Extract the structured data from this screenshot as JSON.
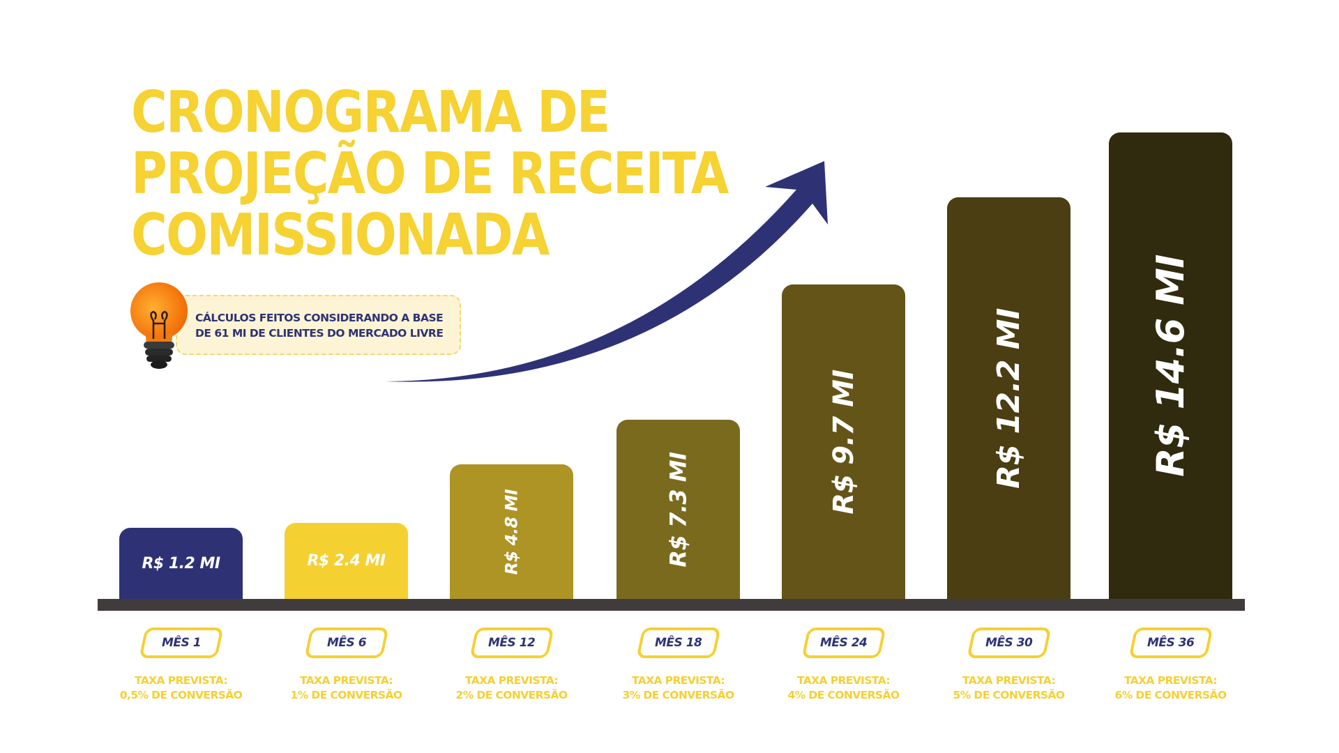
{
  "title": {
    "lines": [
      "CRONOGRAMA DE",
      "PROJEÇÃO DE RECEITA",
      "COMISSIONADA"
    ]
  },
  "note": {
    "icon": "lightbulb-icon",
    "lines": [
      "CÁLCULOS  FEITOS CONSIDERANDO A BASE",
      "DE 61 MI DE CLIENTES DO MERCADO LIVRE"
    ]
  },
  "colors": {
    "title": "#f6d232",
    "navy": "#2e3275",
    "baseline": "#403c3b"
  },
  "chart_data": {
    "type": "bar",
    "title": "CRONOGRAMA DE PROJEÇÃO DE RECEITA COMISSIONADA",
    "unit": "R$ milhões",
    "categories": [
      "MÊS 1",
      "MÊS 6",
      "MÊS 12",
      "MÊS 18",
      "MÊS 24",
      "MÊS 30",
      "MÊS 36"
    ],
    "values": [
      1.2,
      2.4,
      4.8,
      7.3,
      9.7,
      12.2,
      14.6
    ],
    "data_labels": [
      "R$ 1.2 MI",
      "R$ 2.4 MI",
      "R$ 4.8 MI",
      "R$ 7.3 MI",
      "R$ 9.7 MI",
      "R$ 12.2 MI",
      "R$ 14.6 MI"
    ],
    "rates": [
      [
        "TAXA PREVISTA:",
        "0,5% DE CONVERSÃO"
      ],
      [
        "TAXA PREVISTA:",
        "1% DE CONVERSÃO"
      ],
      [
        "TAXA PREVISTA:",
        "2% DE CONVERSÃO"
      ],
      [
        "TAXA PREVISTA:",
        "3% DE CONVERSÃO"
      ],
      [
        "TAXA PREVISTA:",
        "4% DE CONVERSÃO"
      ],
      [
        "TAXA PREVISTA:",
        "5% DE CONVERSÃO"
      ],
      [
        "TAXA PREVISTA:",
        "6% DE CONVERSÃO"
      ]
    ],
    "bar_colors": [
      "#2e3275",
      "#f5d031",
      "#ae9325",
      "#7a6a1e",
      "#655418",
      "#4a3e12",
      "#302a0e"
    ],
    "grid": false
  }
}
